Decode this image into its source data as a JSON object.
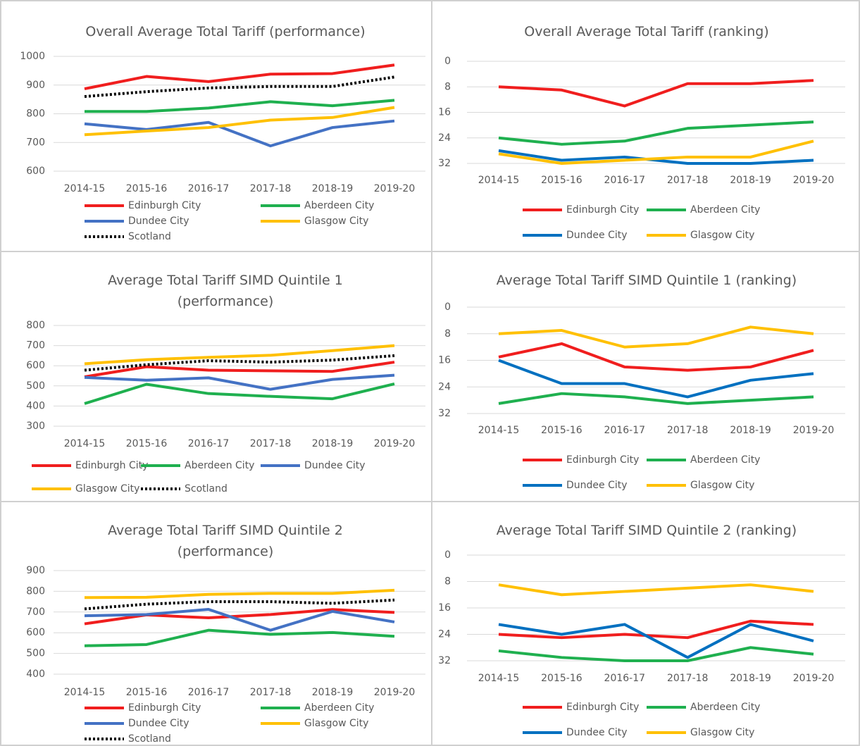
{
  "chart_data": [
    {
      "type": "line",
      "title": "Overall Average Total Tariff (performance)",
      "categories": [
        "2014-15",
        "2015-16",
        "2016-17",
        "2017-18",
        "2018-19",
        "2019-20"
      ],
      "ylim": [
        600,
        1000
      ],
      "yticks": [
        600,
        700,
        800,
        900,
        1000
      ],
      "grid": true,
      "series": [
        {
          "name": "Edinburgh City",
          "color": "#f01e1e",
          "values": [
            887,
            930,
            912,
            938,
            940,
            970
          ]
        },
        {
          "name": "Aberdeen City",
          "color": "#1fb04f",
          "values": [
            808,
            808,
            820,
            842,
            828,
            847
          ]
        },
        {
          "name": "Dundee City",
          "color": "#4472c4",
          "values": [
            765,
            745,
            770,
            688,
            752,
            775
          ]
        },
        {
          "name": "Glasgow City",
          "color": "#ffc000",
          "values": [
            727,
            740,
            752,
            778,
            787,
            822
          ]
        },
        {
          "name": "Scotland",
          "color": "#000000",
          "dotted": true,
          "values": [
            860,
            877,
            890,
            895,
            895,
            928
          ]
        }
      ]
    },
    {
      "type": "line",
      "title": "Overall Average Total Tariff (ranking)",
      "categories": [
        "2014-15",
        "2015-16",
        "2016-17",
        "2017-18",
        "2018-19",
        "2019-20"
      ],
      "ylim": [
        0,
        32
      ],
      "yticks": [
        0,
        8,
        16,
        24,
        32
      ],
      "inverted_y": true,
      "grid": true,
      "series": [
        {
          "name": "Edinburgh City",
          "color": "#f01e1e",
          "values": [
            8,
            9,
            14,
            7,
            7,
            6
          ]
        },
        {
          "name": "Aberdeen City",
          "color": "#1fb04f",
          "values": [
            24,
            26,
            25,
            21,
            20,
            19
          ]
        },
        {
          "name": "Dundee City",
          "color": "#0070c0",
          "values": [
            28,
            31,
            30,
            32,
            32,
            31
          ]
        },
        {
          "name": "Glasgow City",
          "color": "#ffc000",
          "values": [
            29,
            32,
            31,
            30,
            30,
            25
          ]
        }
      ]
    },
    {
      "type": "line",
      "title": "Average Total Tariff SIMD Quintile 1 (performance)",
      "categories": [
        "2014-15",
        "2015-16",
        "2016-17",
        "2017-18",
        "2018-19",
        "2019-20"
      ],
      "ylim": [
        300,
        800
      ],
      "yticks": [
        300,
        400,
        500,
        600,
        700,
        800
      ],
      "grid": true,
      "series": [
        {
          "name": "Edinburgh City",
          "color": "#f01e1e",
          "values": [
            545,
            595,
            578,
            575,
            572,
            618
          ]
        },
        {
          "name": "Aberdeen City",
          "color": "#1fb04f",
          "values": [
            412,
            508,
            462,
            448,
            436,
            510
          ]
        },
        {
          "name": "Dundee City",
          "color": "#4472c4",
          "values": [
            542,
            528,
            540,
            483,
            532,
            553
          ]
        },
        {
          "name": "Glasgow City",
          "color": "#ffc000",
          "values": [
            610,
            630,
            642,
            652,
            675,
            700
          ]
        },
        {
          "name": "Scotland",
          "color": "#000000",
          "dotted": true,
          "values": [
            578,
            605,
            625,
            618,
            628,
            650
          ]
        }
      ]
    },
    {
      "type": "line",
      "title": "Average Total Tariff SIMD Quintile 1 (ranking)",
      "categories": [
        "2014-15",
        "2015-16",
        "2016-17",
        "2017-18",
        "2018-19",
        "2019-20"
      ],
      "ylim": [
        0,
        32
      ],
      "yticks": [
        0,
        8,
        16,
        24,
        32
      ],
      "inverted_y": true,
      "grid": true,
      "series": [
        {
          "name": "Edinburgh City",
          "color": "#f01e1e",
          "values": [
            15,
            11,
            18,
            19,
            18,
            13
          ]
        },
        {
          "name": "Aberdeen City",
          "color": "#1fb04f",
          "values": [
            29,
            26,
            27,
            29,
            28,
            27
          ]
        },
        {
          "name": "Dundee City",
          "color": "#0070c0",
          "values": [
            16,
            23,
            23,
            27,
            22,
            20
          ]
        },
        {
          "name": "Glasgow City",
          "color": "#ffc000",
          "values": [
            8,
            7,
            12,
            11,
            6,
            8
          ]
        }
      ]
    },
    {
      "type": "line",
      "title": "Average Total Tariff SIMD Quintile 2 (performance)",
      "categories": [
        "2014-15",
        "2015-16",
        "2016-17",
        "2017-18",
        "2018-19",
        "2019-20"
      ],
      "ylim": [
        400,
        900
      ],
      "yticks": [
        400,
        500,
        600,
        700,
        800,
        900
      ],
      "grid": true,
      "series": [
        {
          "name": "Edinburgh City",
          "color": "#f01e1e",
          "values": [
            643,
            686,
            672,
            688,
            712,
            698
          ]
        },
        {
          "name": "Aberdeen City",
          "color": "#1fb04f",
          "values": [
            537,
            543,
            612,
            592,
            601,
            583
          ]
        },
        {
          "name": "Dundee City",
          "color": "#4472c4",
          "values": [
            682,
            688,
            713,
            612,
            703,
            652
          ]
        },
        {
          "name": "Glasgow City",
          "color": "#ffc000",
          "values": [
            770,
            771,
            785,
            790,
            790,
            805
          ]
        },
        {
          "name": "Scotland",
          "color": "#000000",
          "dotted": true,
          "values": [
            715,
            738,
            750,
            750,
            742,
            758
          ]
        }
      ]
    },
    {
      "type": "line",
      "title": "Average Total Tariff SIMD Quintile 2 (ranking)",
      "categories": [
        "2014-15",
        "2015-16",
        "2016-17",
        "2017-18",
        "2018-19",
        "2019-20"
      ],
      "ylim": [
        0,
        32
      ],
      "yticks": [
        0,
        8,
        16,
        24,
        32
      ],
      "inverted_y": true,
      "grid": true,
      "series": [
        {
          "name": "Edinburgh City",
          "color": "#f01e1e",
          "values": [
            24,
            25,
            24,
            25,
            20,
            21
          ]
        },
        {
          "name": "Aberdeen City",
          "color": "#1fb04f",
          "values": [
            29,
            31,
            32,
            32,
            28,
            30
          ]
        },
        {
          "name": "Dundee City",
          "color": "#0070c0",
          "values": [
            21,
            24,
            21,
            31,
            21,
            26
          ]
        },
        {
          "name": "Glasgow City",
          "color": "#ffc000",
          "values": [
            9,
            12,
            11,
            10,
            9,
            11
          ]
        }
      ]
    }
  ]
}
